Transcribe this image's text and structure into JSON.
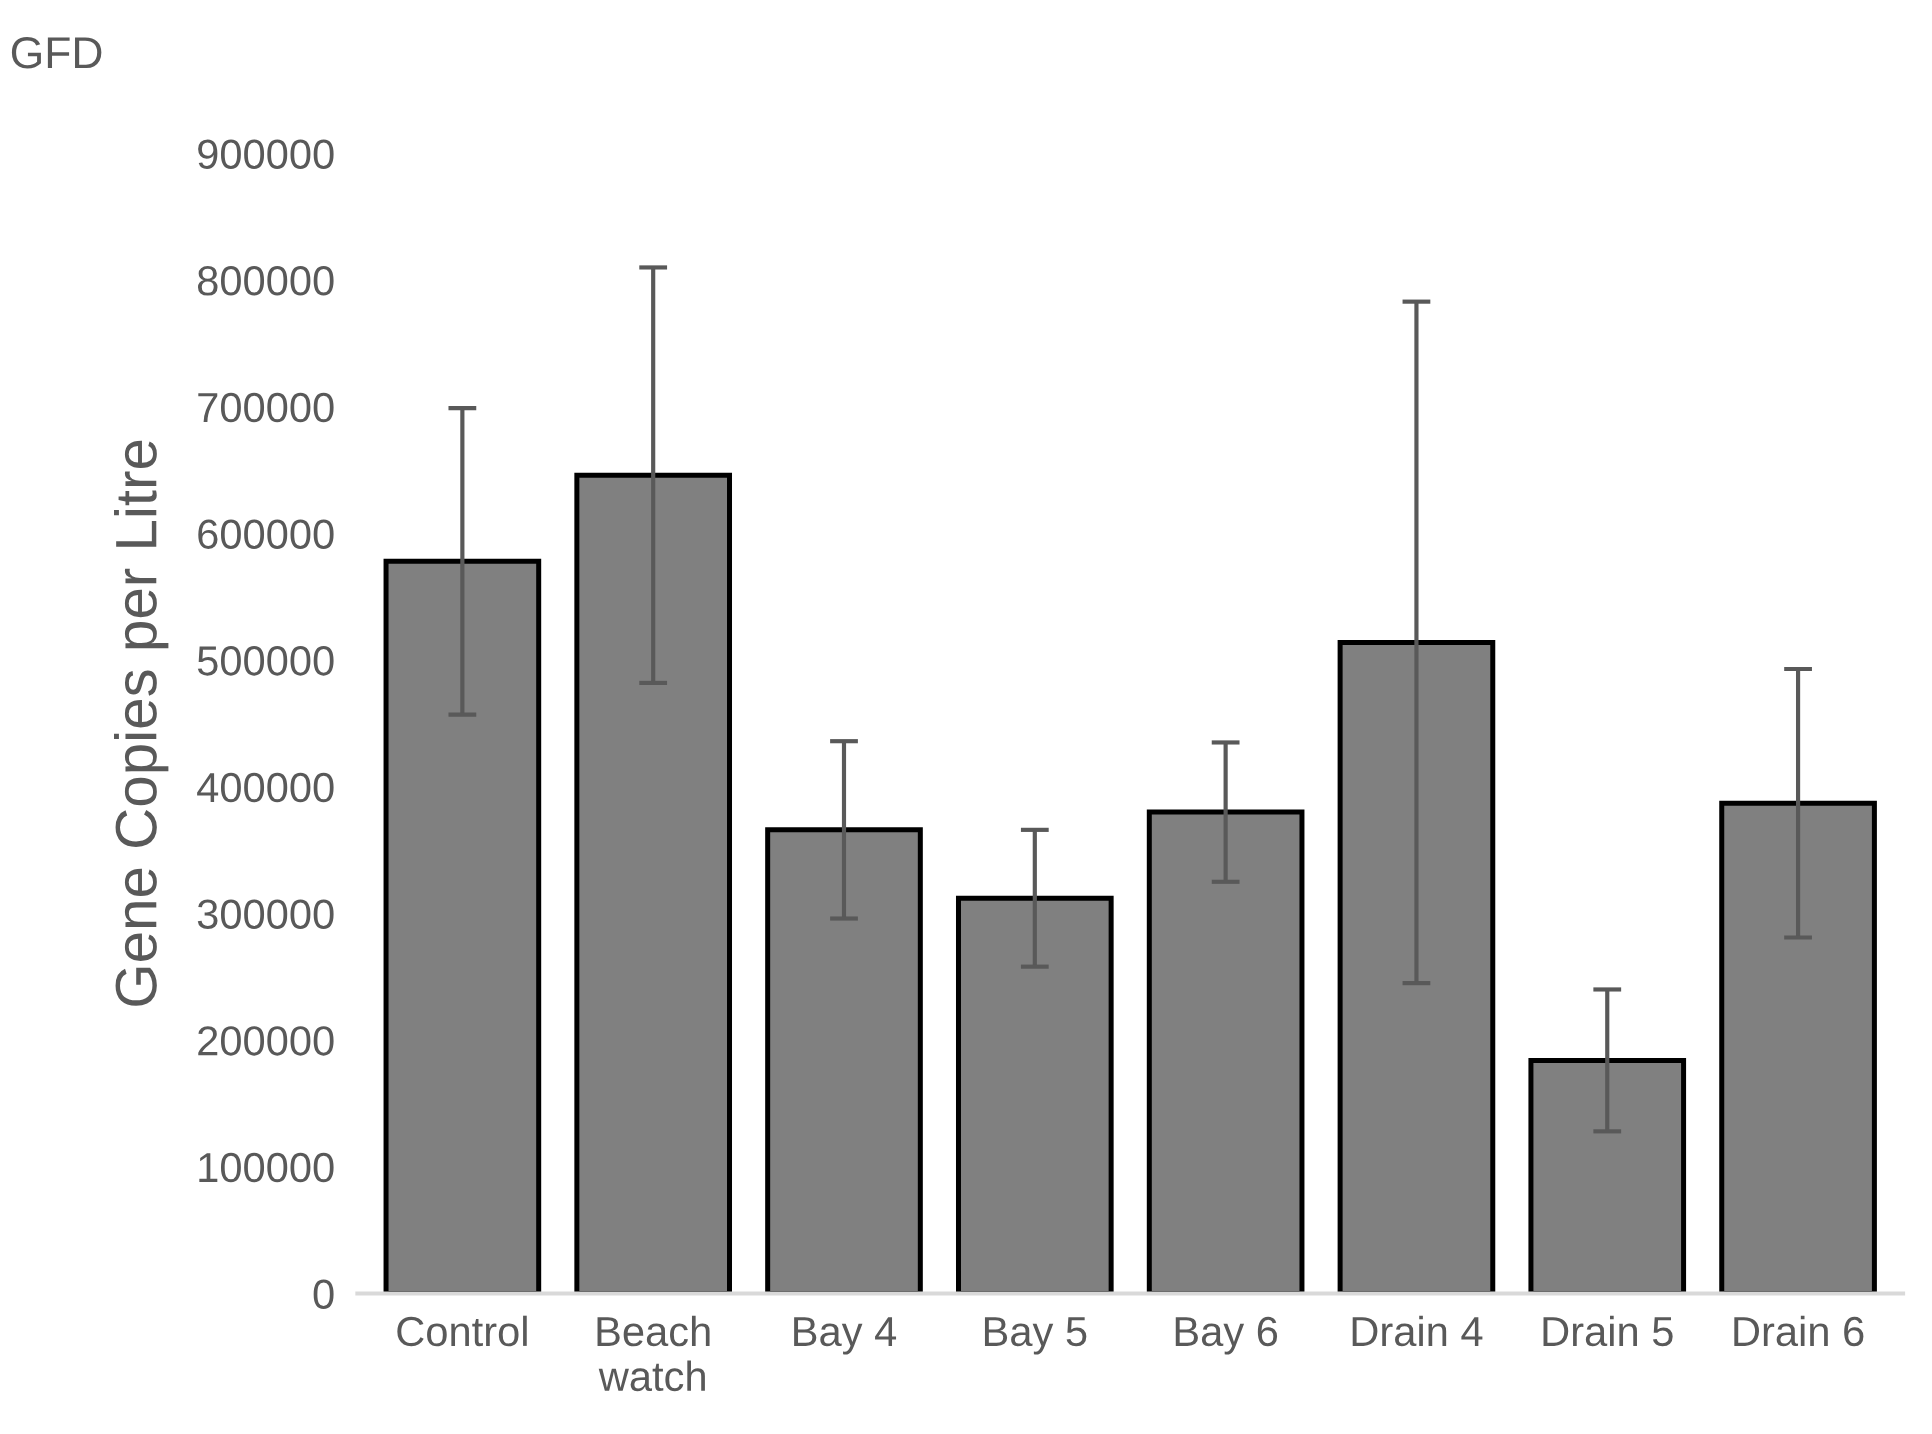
{
  "chart_data": {
    "type": "bar",
    "title": "GFD",
    "ylabel": "Gene Copies per Litre",
    "categories": [
      "Control",
      "Beach\nwatch",
      "Bay 4",
      "Bay 5",
      "Bay 6",
      "Drain 4",
      "Drain 5",
      "Drain 6"
    ],
    "values": [
      578000,
      646000,
      366000,
      312000,
      380000,
      514000,
      184000,
      387000
    ],
    "errors": [
      121000,
      164000,
      70000,
      54000,
      55000,
      269000,
      56000,
      106000
    ],
    "color": "#808080",
    "ylim": [
      0,
      900000
    ],
    "yticks": [
      0,
      100000,
      200000,
      300000,
      400000,
      500000,
      600000,
      700000,
      800000,
      900000
    ],
    "grid": false,
    "legend": false
  }
}
